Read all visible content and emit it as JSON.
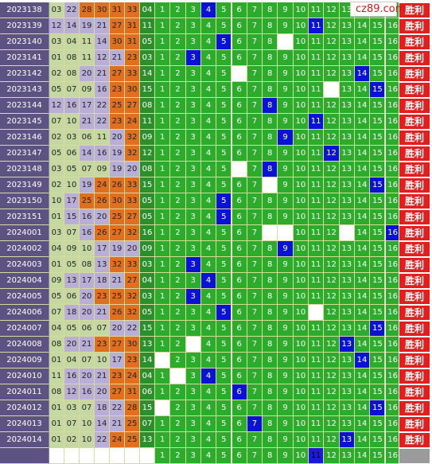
{
  "logo": {
    "text": "cz89.com"
  },
  "result_label": "胜利",
  "rows": [
    {
      "issue": "2023138",
      "nums": [
        "03",
        "22",
        "28",
        "30",
        "31",
        "33"
      ],
      "blue": "04",
      "hit": 4,
      "blanks": [],
      "res": true
    },
    {
      "issue": "2023139",
      "nums": [
        "12",
        "14",
        "19",
        "21",
        "27",
        "31"
      ],
      "blue": "11",
      "hit": 11,
      "blanks": [],
      "res": true
    },
    {
      "issue": "2023140",
      "nums": [
        "03",
        "04",
        "11",
        "14",
        "30",
        "31"
      ],
      "blue": "05",
      "hit": 5,
      "blanks": [
        9
      ],
      "res": true
    },
    {
      "issue": "2023141",
      "nums": [
        "01",
        "08",
        "11",
        "12",
        "21",
        "23"
      ],
      "blue": "03",
      "hit": 3,
      "blanks": [],
      "res": true
    },
    {
      "issue": "2023142",
      "nums": [
        "02",
        "08",
        "20",
        "21",
        "27",
        "33"
      ],
      "blue": "14",
      "hit": 14,
      "blanks": [
        6
      ],
      "res": true
    },
    {
      "issue": "2023143",
      "nums": [
        "05",
        "07",
        "09",
        "16",
        "23",
        "30"
      ],
      "blue": "15",
      "hit": 15,
      "blanks": [
        12
      ],
      "res": true
    },
    {
      "issue": "2023144",
      "nums": [
        "12",
        "16",
        "17",
        "22",
        "25",
        "27"
      ],
      "blue": "08",
      "hit": 8,
      "blanks": [],
      "res": true
    },
    {
      "issue": "2023145",
      "nums": [
        "07",
        "10",
        "21",
        "22",
        "23",
        "24"
      ],
      "blue": "11",
      "hit": 11,
      "blanks": [],
      "res": true
    },
    {
      "issue": "2023146",
      "nums": [
        "02",
        "03",
        "06",
        "11",
        "20",
        "32"
      ],
      "blue": "09",
      "hit": 9,
      "blanks": [],
      "res": true
    },
    {
      "issue": "2023147",
      "nums": [
        "05",
        "06",
        "14",
        "16",
        "19",
        "32"
      ],
      "blue": "12",
      "hit": 12,
      "blanks": [],
      "res": true
    },
    {
      "issue": "2023148",
      "nums": [
        "03",
        "05",
        "07",
        "09",
        "19",
        "20"
      ],
      "blue": "08",
      "hit": 8,
      "blanks": [
        6
      ],
      "res": true
    },
    {
      "issue": "2023149",
      "nums": [
        "02",
        "10",
        "19",
        "24",
        "26",
        "33"
      ],
      "blue": "15",
      "hit": 15,
      "blanks": [
        8
      ],
      "res": true
    },
    {
      "issue": "2023150",
      "nums": [
        "10",
        "17",
        "25",
        "26",
        "30",
        "33"
      ],
      "blue": "05",
      "hit": 5,
      "blanks": [],
      "res": true
    },
    {
      "issue": "2023151",
      "nums": [
        "01",
        "15",
        "16",
        "20",
        "25",
        "27"
      ],
      "blue": "05",
      "hit": 5,
      "blanks": [],
      "res": true
    },
    {
      "issue": "2024001",
      "nums": [
        "03",
        "07",
        "16",
        "26",
        "27",
        "32"
      ],
      "blue": "16",
      "hit": 16,
      "blanks": [
        8,
        9,
        13
      ],
      "res": true
    },
    {
      "issue": "2024002",
      "nums": [
        "04",
        "09",
        "10",
        "17",
        "19",
        "20"
      ],
      "blue": "09",
      "hit": 9,
      "blanks": [],
      "res": true
    },
    {
      "issue": "2024003",
      "nums": [
        "01",
        "05",
        "08",
        "13",
        "32",
        "33"
      ],
      "blue": "03",
      "hit": 3,
      "blanks": [],
      "res": true
    },
    {
      "issue": "2024004",
      "nums": [
        "09",
        "13",
        "17",
        "18",
        "21",
        "27"
      ],
      "blue": "04",
      "hit": 4,
      "blanks": [],
      "res": true
    },
    {
      "issue": "2024005",
      "nums": [
        "05",
        "06",
        "20",
        "23",
        "25",
        "32"
      ],
      "blue": "03",
      "hit": 3,
      "blanks": [],
      "res": true
    },
    {
      "issue": "2024006",
      "nums": [
        "07",
        "18",
        "20",
        "21",
        "26",
        "32"
      ],
      "blue": "05",
      "hit": 5,
      "blanks": [
        11
      ],
      "res": true
    },
    {
      "issue": "2024007",
      "nums": [
        "04",
        "05",
        "06",
        "07",
        "20",
        "22"
      ],
      "blue": "15",
      "hit": 15,
      "blanks": [],
      "res": true
    },
    {
      "issue": "2024008",
      "nums": [
        "08",
        "20",
        "21",
        "23",
        "27",
        "30"
      ],
      "blue": "13",
      "hit": 13,
      "blanks": [
        3
      ],
      "res": true
    },
    {
      "issue": "2024009",
      "nums": [
        "01",
        "04",
        "07",
        "10",
        "17",
        "23"
      ],
      "blue": "14",
      "hit": 14,
      "blanks": [
        1
      ],
      "res": true
    },
    {
      "issue": "2024010",
      "nums": [
        "11",
        "16",
        "20",
        "21",
        "23",
        "24"
      ],
      "blue": "04",
      "hit": 4,
      "blanks": [
        2
      ],
      "res": true
    },
    {
      "issue": "2024011",
      "nums": [
        "08",
        "12",
        "16",
        "20",
        "27",
        "31"
      ],
      "blue": "06",
      "hit": 6,
      "blanks": [],
      "res": true
    },
    {
      "issue": "2024012",
      "nums": [
        "01",
        "03",
        "07",
        "18",
        "22",
        "28"
      ],
      "blue": "15",
      "hit": 15,
      "blanks": [
        1
      ],
      "res": true
    },
    {
      "issue": "2024013",
      "nums": [
        "01",
        "07",
        "10",
        "14",
        "21",
        "25"
      ],
      "blue": "07",
      "hit": 7,
      "blanks": [],
      "res": true
    },
    {
      "issue": "2024014",
      "nums": [
        "01",
        "02",
        "10",
        "22",
        "24",
        "25"
      ],
      "blue": "13",
      "hit": 13,
      "blanks": [],
      "res": true
    }
  ],
  "footer_blue": [
    1,
    2,
    3,
    4,
    5,
    6,
    7,
    8,
    9,
    10,
    11,
    12,
    13,
    14,
    15,
    16
  ],
  "footer_hit": [
    11
  ],
  "colors": {
    "issue": "#5c5382",
    "pick": "#2bad2b",
    "hit": "#0a12d6",
    "result": "#e21e1e"
  }
}
